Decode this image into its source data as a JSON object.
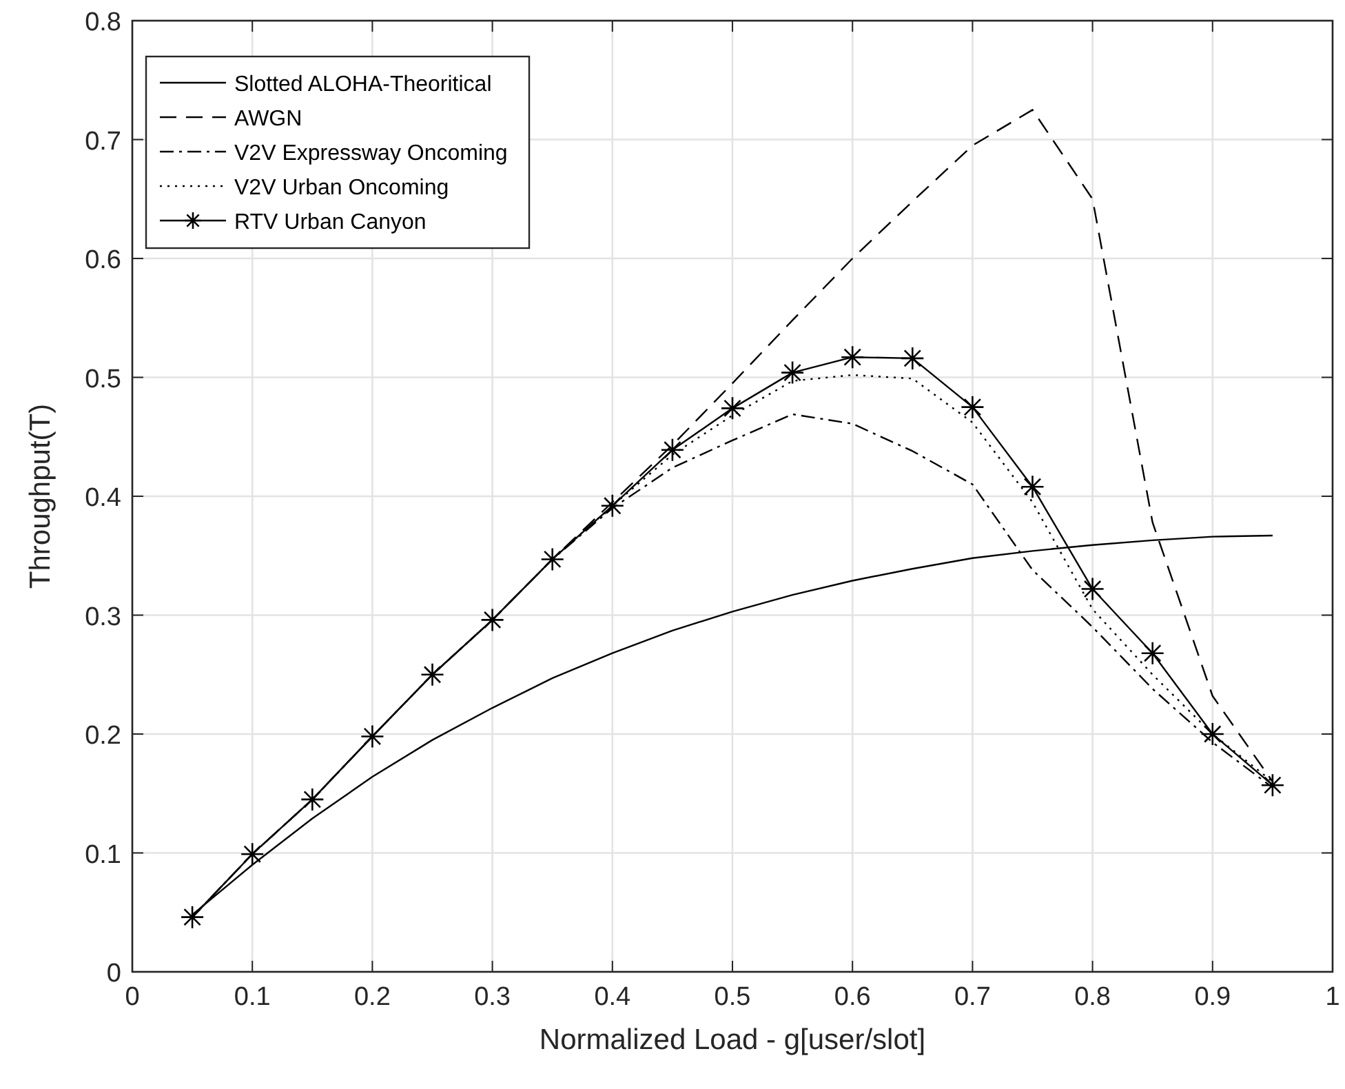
{
  "chart_data": {
    "type": "line",
    "xlabel": "Normalized Load - g[user/slot]",
    "ylabel": "Throughput(T)",
    "x": [
      0.05,
      0.1,
      0.15,
      0.2,
      0.25,
      0.3,
      0.35,
      0.4,
      0.45,
      0.5,
      0.55,
      0.6,
      0.65,
      0.7,
      0.75,
      0.8,
      0.85,
      0.9,
      0.95
    ],
    "series": [
      {
        "name": "Slotted ALOHA-Theoritical",
        "color": "#000000",
        "line_style": "solid",
        "marker": "none",
        "values": [
          0.048,
          0.09,
          0.129,
          0.164,
          0.195,
          0.222,
          0.247,
          0.268,
          0.287,
          0.303,
          0.317,
          0.329,
          0.339,
          0.348,
          0.354,
          0.359,
          0.363,
          0.366,
          0.367
        ]
      },
      {
        "name": "AWGN",
        "color": "#000000",
        "line_style": "dashed",
        "marker": "none",
        "values": [
          0.046,
          0.099,
          0.145,
          0.198,
          0.25,
          0.296,
          0.347,
          0.395,
          0.443,
          0.495,
          0.548,
          0.6,
          0.648,
          0.695,
          0.725,
          0.65,
          0.378,
          0.232,
          0.16
        ]
      },
      {
        "name": "V2V Expressway Oncoming",
        "color": "#000000",
        "line_style": "dashdot",
        "marker": "none",
        "values": [
          0.046,
          0.099,
          0.145,
          0.198,
          0.25,
          0.296,
          0.347,
          0.39,
          0.424,
          0.447,
          0.469,
          0.461,
          0.438,
          0.41,
          0.338,
          0.29,
          0.238,
          0.193,
          0.155
        ]
      },
      {
        "name": "V2V Urban Oncoming",
        "color": "#000000",
        "line_style": "dotted",
        "marker": "none",
        "values": [
          0.046,
          0.099,
          0.145,
          0.198,
          0.25,
          0.296,
          0.347,
          0.392,
          0.435,
          0.468,
          0.497,
          0.502,
          0.499,
          0.462,
          0.395,
          0.305,
          0.25,
          0.2,
          0.16
        ]
      },
      {
        "name": "RTV Urban Canyon",
        "color": "#000000",
        "line_style": "solid",
        "marker": "cross",
        "values": [
          0.046,
          0.099,
          0.145,
          0.198,
          0.25,
          0.296,
          0.347,
          0.392,
          0.439,
          0.474,
          0.504,
          0.517,
          0.516,
          0.475,
          0.408,
          0.322,
          0.268,
          0.2,
          0.157
        ]
      }
    ],
    "xlim": [
      0,
      1
    ],
    "xticks": [
      0,
      0.1,
      0.2,
      0.3,
      0.4,
      0.5,
      0.6,
      0.7,
      0.8,
      0.9,
      1
    ],
    "ylim": [
      0,
      0.8
    ],
    "yticks": [
      0,
      0.1,
      0.2,
      0.3,
      0.4,
      0.5,
      0.6,
      0.7,
      0.8
    ],
    "grid": true,
    "legend": "top left"
  }
}
